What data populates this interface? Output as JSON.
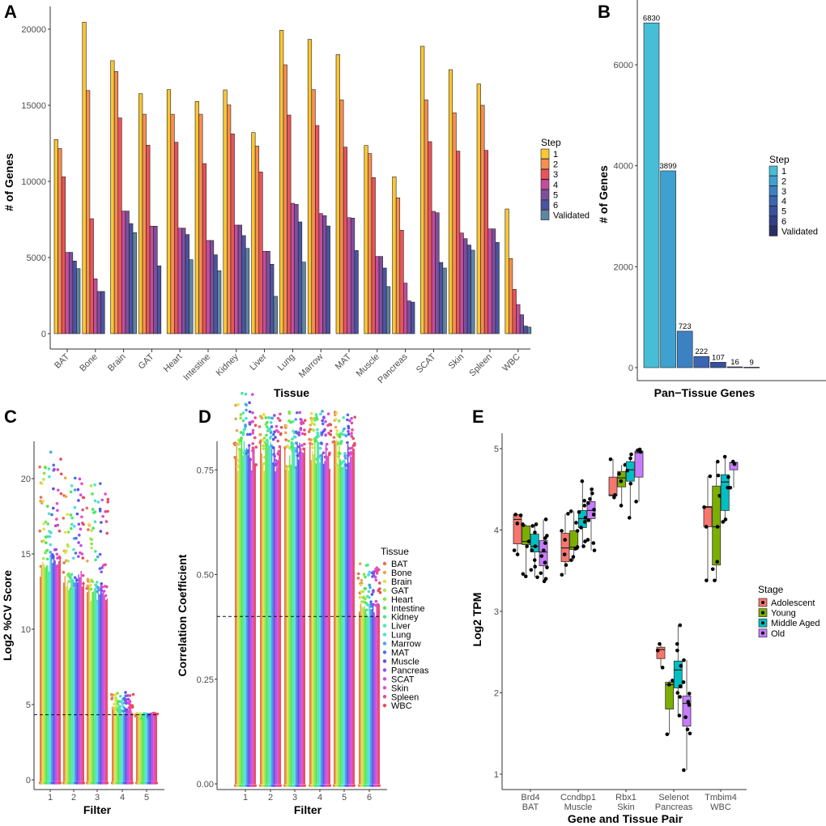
{
  "panels": {
    "A": "A",
    "B": "B",
    "C": "C",
    "D": "D",
    "E": "E"
  },
  "chart_data": [
    {
      "panel": "A",
      "type": "bar",
      "xlabel": "Tissue",
      "ylabel": "# of Genes",
      "ylim": [
        0,
        20500
      ],
      "yticks": [
        "0",
        "5000",
        "10000",
        "15000",
        "20000"
      ],
      "ytick_values": [
        0,
        5000,
        10000,
        15000,
        20000
      ],
      "legend_title": "Step",
      "legend_position": "right",
      "series_names": [
        "1",
        "2",
        "3",
        "4",
        "5",
        "6",
        "Validated"
      ],
      "series_colors": [
        "#F9C634",
        "#F68E50",
        "#E8545A",
        "#C44D9C",
        "#7E4E9E",
        "#4B54A2",
        "#5E85A2"
      ],
      "categories": [
        "BAT",
        "Bone",
        "Brain",
        "GAT",
        "Heart",
        "Intestine",
        "Kidney",
        "Liver",
        "Lung",
        "Marrow",
        "MAT",
        "Muscle",
        "Pancreas",
        "SCAT",
        "Skin",
        "Spleen",
        "WBC"
      ],
      "values": [
        [
          12750,
          12160,
          10300,
          5340,
          5340,
          4770,
          4270
        ],
        [
          20460,
          15970,
          7550,
          3600,
          2770,
          2770,
          null
        ],
        [
          17930,
          17220,
          14170,
          8050,
          8050,
          7230,
          6630
        ],
        [
          15760,
          14410,
          12380,
          7060,
          7060,
          4450,
          null
        ],
        [
          16030,
          14410,
          12570,
          6930,
          6930,
          6510,
          4860
        ],
        [
          15250,
          14410,
          11170,
          6120,
          6120,
          5180,
          4130
        ],
        [
          16010,
          15020,
          13120,
          7130,
          7130,
          6440,
          5600
        ],
        [
          13210,
          12320,
          10620,
          5410,
          5410,
          4560,
          2450
        ],
        [
          19930,
          17660,
          14360,
          8560,
          8490,
          7340,
          4700
        ],
        [
          19330,
          16030,
          13670,
          7890,
          7750,
          7070,
          null
        ],
        [
          18330,
          15350,
          12250,
          7620,
          7590,
          5460,
          null
        ],
        [
          12360,
          11830,
          10250,
          5070,
          5070,
          4310,
          3090
        ],
        [
          10300,
          8920,
          6790,
          3320,
          2150,
          2070,
          null
        ],
        [
          18880,
          15350,
          12610,
          8030,
          7940,
          4680,
          4310
        ],
        [
          17340,
          14500,
          11990,
          6610,
          6240,
          5820,
          5480
        ],
        [
          16400,
          15000,
          12040,
          6880,
          6880,
          5990,
          null
        ],
        [
          8190,
          4930,
          2910,
          1910,
          1240,
          500,
          430
        ]
      ]
    },
    {
      "panel": "B",
      "type": "bar",
      "xlabel": "Pan−Tissue Genes",
      "ylabel": "# of Genes",
      "ylim": [
        0,
        7000
      ],
      "yticks": [
        "0",
        "2000",
        "4000",
        "6000"
      ],
      "ytick_values": [
        0,
        2000,
        4000,
        6000
      ],
      "legend_title": "Step",
      "legend_position": "right",
      "categories": [
        "1",
        "2",
        "3",
        "4",
        "5",
        "6",
        "Validated"
      ],
      "values": [
        6830,
        3899,
        723,
        222,
        107,
        16,
        9
      ],
      "data_labels": [
        "6830",
        "3899",
        "723",
        "222",
        "107",
        "16",
        "9"
      ],
      "colors": [
        "#47BDD6",
        "#3FA1D0",
        "#3C82C3",
        "#3A66B2",
        "#37519E",
        "#323F86",
        "#2B2F66"
      ]
    },
    {
      "panel": "C",
      "type": "scatter",
      "xlabel": "Filter",
      "ylabel": "Log2 %CV Score",
      "ylim": [
        -0.5,
        22
      ],
      "yticks": [
        "0",
        "5",
        "10",
        "15",
        "20"
      ],
      "ytick_values": [
        0,
        5,
        10,
        15,
        20
      ],
      "threshold": 4.32,
      "filters": [
        {
          "label": "1",
          "dense_top": 14.5,
          "max": 21.8
        },
        {
          "label": "2",
          "dense_top": 13.5,
          "max": 20.1
        },
        {
          "label": "3",
          "dense_top": 12.6,
          "max": 20.1
        },
        {
          "label": "4",
          "dense_top": 4.6,
          "max": 5.9
        },
        {
          "label": "5",
          "dense_top": 4.32,
          "max": 4.4
        }
      ]
    },
    {
      "panel": "D",
      "type": "scatter",
      "xlabel": "Filter",
      "ylabel": "Correlation Coefficient",
      "ylim": [
        -0.02,
        0.95
      ],
      "yticks": [
        "0.00",
        "0.25",
        "0.50",
        "0.75"
      ],
      "ytick_values": [
        0,
        0.25,
        0.5,
        0.75
      ],
      "threshold": 0.4,
      "legend_title": "Tissue",
      "legend_position": "right",
      "tissues": [
        "BAT",
        "Bone",
        "Brain",
        "GAT",
        "Heart",
        "Intestine",
        "Kidney",
        "Liver",
        "Lung",
        "Marrow",
        "MAT",
        "Muscle",
        "Pancreas",
        "SCAT",
        "Skin",
        "Spleen",
        "WBC"
      ],
      "filters": [
        {
          "label": "1",
          "dense_top": 0.8,
          "max": 0.94
        },
        {
          "label": "2",
          "dense_top": 0.8,
          "max": 0.89
        },
        {
          "label": "3",
          "dense_top": 0.8,
          "max": 0.89
        },
        {
          "label": "4",
          "dense_top": 0.8,
          "max": 0.89
        },
        {
          "label": "5",
          "dense_top": 0.8,
          "max": 0.89
        },
        {
          "label": "6",
          "dense_top": 0.42,
          "max": 0.53
        }
      ]
    },
    {
      "panel": "E",
      "type": "box",
      "xlabel": "Gene and Tissue Pair",
      "ylabel": "Log2 TPM",
      "ylim": [
        0.8,
        5.2
      ],
      "yticks": [
        "1",
        "2",
        "3",
        "4",
        "5"
      ],
      "ytick_values": [
        1,
        2,
        3,
        4,
        5
      ],
      "legend_title": "Stage",
      "legend_position": "right",
      "stages": [
        "Adolescent",
        "Young",
        "Middle Aged",
        "Old"
      ],
      "stage_colors": [
        "#F8766D",
        "#7CAE00",
        "#00BFC4",
        "#C77CFF"
      ],
      "groups": [
        {
          "gene": "Brd4",
          "tissue": "BAT",
          "boxes": [
            {
              "min": 3.7,
              "q1": 3.83,
              "median": 4.13,
              "q3": 4.19,
              "max": 4.19,
              "points": [
                3.7,
                3.75,
                4.08,
                4.18,
                4.19
              ]
            },
            {
              "min": 3.43,
              "q1": 3.82,
              "median": 3.86,
              "q3": 4.05,
              "max": 4.07,
              "points": [
                3.43,
                3.46,
                3.8,
                3.86,
                4.06,
                4.07
              ]
            },
            {
              "min": 3.42,
              "q1": 3.73,
              "median": 3.8,
              "q3": 3.95,
              "max": 4.07,
              "points": [
                3.42,
                3.51,
                3.55,
                3.63,
                3.75,
                3.8,
                3.97,
                4.05,
                4.07
              ]
            },
            {
              "min": 3.37,
              "q1": 3.56,
              "median": 3.73,
              "q3": 3.87,
              "max": 4.13,
              "points": [
                3.37,
                3.4,
                3.47,
                3.54,
                3.6,
                3.68,
                3.75,
                3.84,
                3.9,
                3.93,
                4.13
              ]
            }
          ]
        },
        {
          "gene": "Ccndbp1",
          "tissue": "Muscle",
          "boxes": [
            {
              "min": 3.45,
              "q1": 3.61,
              "median": 3.78,
              "q3": 3.96,
              "max": 4.2,
              "points": [
                3.45,
                3.57,
                3.7,
                3.88,
                3.99,
                4.2
              ]
            },
            {
              "min": 3.63,
              "q1": 3.76,
              "median": 3.79,
              "q3": 3.99,
              "max": 4.23,
              "points": [
                3.63,
                3.67,
                3.77,
                3.79,
                3.99,
                4.09,
                4.23
              ]
            },
            {
              "min": 3.8,
              "q1": 4.03,
              "median": 4.14,
              "q3": 4.24,
              "max": 4.6,
              "points": [
                3.8,
                3.86,
                4.03,
                4.1,
                4.15,
                4.22,
                4.3,
                4.36,
                4.6
              ]
            },
            {
              "min": 3.75,
              "q1": 4.14,
              "median": 4.24,
              "q3": 4.35,
              "max": 4.5,
              "points": [
                3.75,
                3.84,
                3.88,
                4.12,
                4.19,
                4.25,
                4.33,
                4.38,
                4.45,
                4.5
              ]
            }
          ]
        },
        {
          "gene": "Rbx1",
          "tissue": "Skin",
          "boxes": [
            {
              "min": 4.4,
              "q1": 4.42,
              "median": 4.43,
              "q3": 4.65,
              "max": 4.87,
              "points": [
                4.4,
                4.43,
                4.87
              ]
            },
            {
              "min": 4.3,
              "q1": 4.53,
              "median": 4.64,
              "q3": 4.72,
              "max": 4.8,
              "points": [
                4.3,
                4.6,
                4.69,
                4.8
              ]
            },
            {
              "min": 4.15,
              "q1": 4.6,
              "median": 4.74,
              "q3": 4.84,
              "max": 4.93,
              "points": [
                4.15,
                4.57,
                4.73,
                4.88,
                4.93
              ]
            },
            {
              "min": 4.35,
              "q1": 4.65,
              "median": 4.95,
              "q3": 4.97,
              "max": 4.99,
              "points": [
                4.35,
                4.96,
                4.98,
                4.99
              ]
            }
          ]
        },
        {
          "gene": "Selenot",
          "tissue": "Pancreas",
          "boxes": [
            {
              "min": 2.31,
              "q1": 2.42,
              "median": 2.53,
              "q3": 2.56,
              "max": 2.6,
              "points": [
                2.31,
                2.52,
                2.6
              ]
            },
            {
              "min": 1.49,
              "q1": 1.8,
              "median": 2.1,
              "q3": 2.13,
              "max": 2.15,
              "points": [
                1.49,
                2.1,
                2.15
              ]
            },
            {
              "min": 1.72,
              "q1": 2.06,
              "median": 2.28,
              "q3": 2.39,
              "max": 2.83,
              "points": [
                1.72,
                1.95,
                2.0,
                2.08,
                2.33,
                2.52,
                2.6,
                2.83
              ]
            },
            {
              "min": 1.05,
              "q1": 1.59,
              "median": 1.87,
              "q3": 1.96,
              "max": 2.4,
              "points": [
                1.05,
                1.5,
                1.55,
                1.7,
                1.85,
                1.89,
                1.99,
                2.13,
                2.4
              ]
            }
          ]
        },
        {
          "gene": "Tmbim4",
          "tissue": "WBC",
          "boxes": [
            {
              "min": 3.38,
              "q1": 4.04,
              "median": 4.28,
              "q3": 4.29,
              "max": 4.66,
              "points": [
                3.38,
                4.04,
                4.28,
                4.66
              ]
            },
            {
              "min": 3.38,
              "q1": 3.57,
              "median": 4.04,
              "q3": 4.54,
              "max": 4.84,
              "points": [
                3.38,
                3.52,
                3.61,
                4.04,
                4.42,
                4.67,
                4.84
              ]
            },
            {
              "min": 4.1,
              "q1": 4.24,
              "median": 4.59,
              "q3": 4.68,
              "max": 4.9,
              "points": [
                4.1,
                4.13,
                4.52,
                4.65,
                4.9
              ]
            },
            {
              "min": 4.52,
              "q1": 4.74,
              "median": 4.83,
              "q3": 4.83,
              "max": 4.84,
              "points": [
                4.52,
                4.81,
                4.84
              ]
            }
          ]
        }
      ]
    }
  ]
}
